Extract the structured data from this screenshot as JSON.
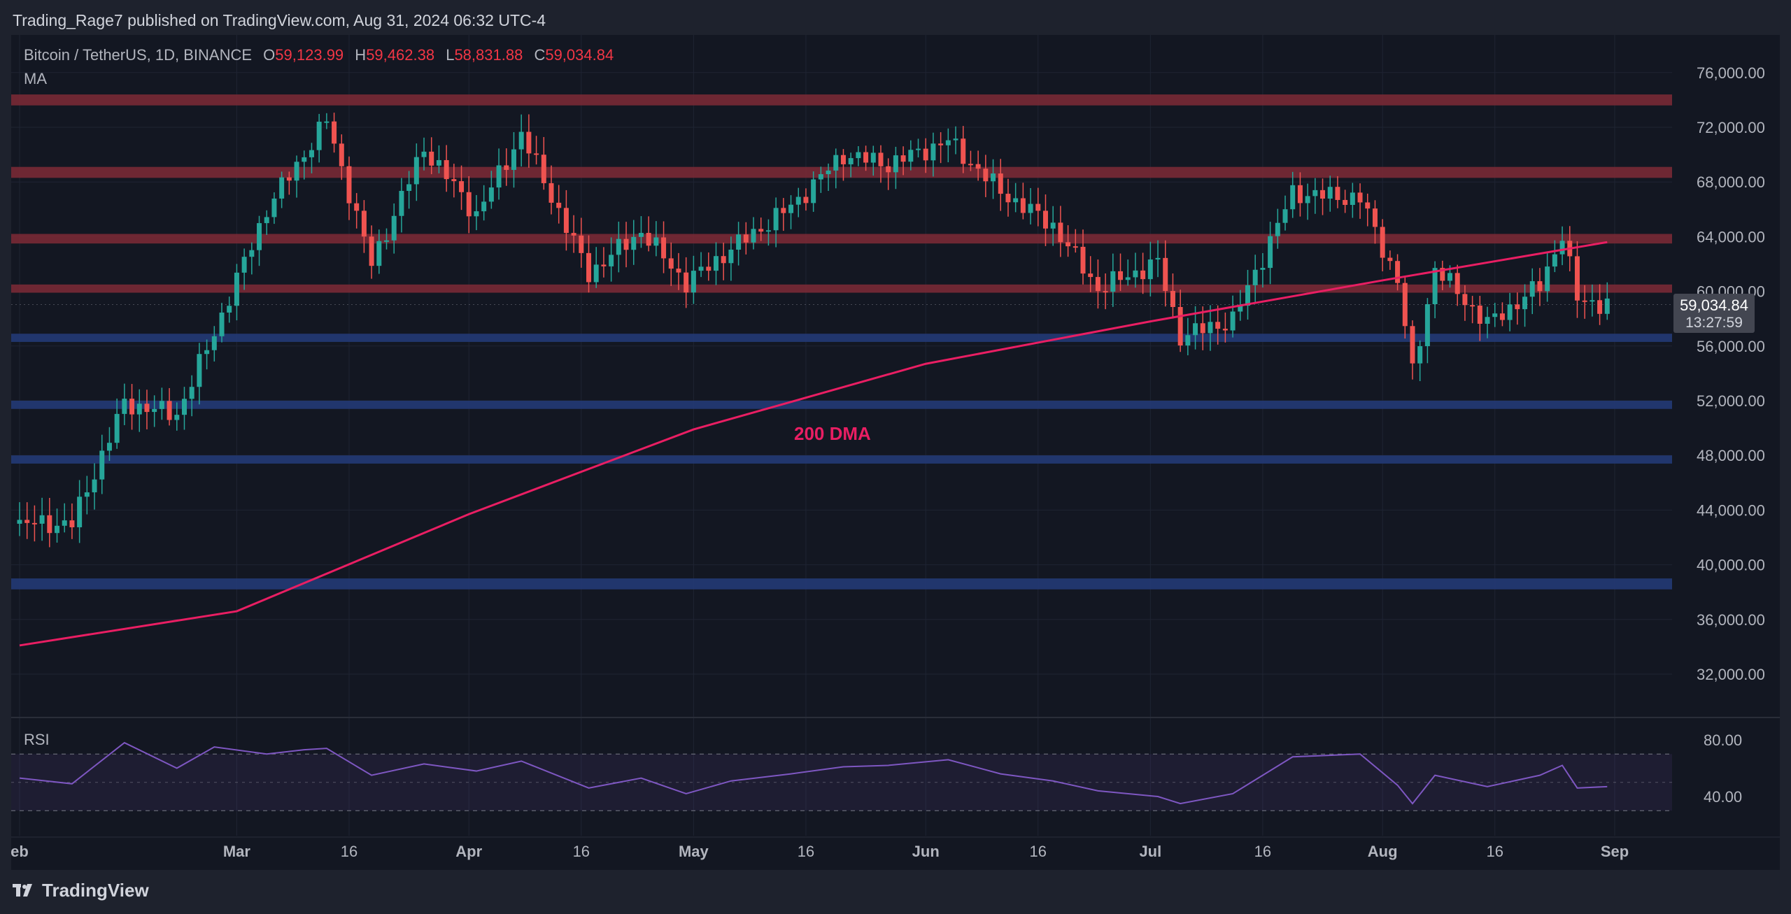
{
  "header": {
    "publish_line": "Trading_Rage7 published on TradingView.com, Aug 31, 2024 06:32 UTC-4"
  },
  "legend": {
    "symbol": "Bitcoin / TetherUS, 1D, BINANCE",
    "o_key": "O",
    "o_val": "59,123.99",
    "h_key": "H",
    "h_val": "59,462.38",
    "l_key": "L",
    "l_val": "58,831.88",
    "c_key": "C",
    "c_val": "59,034.84",
    "ma_label": "MA"
  },
  "annotation": {
    "dma_label": "200 DMA"
  },
  "price_tag": {
    "value": "59,034.84",
    "timer": "13:27:59"
  },
  "rsi_panel": {
    "label": "RSI"
  },
  "footer": {
    "brand": "TradingView"
  },
  "colors": {
    "up": "#26a69a",
    "down": "#ef5350",
    "ma": "#e91e63",
    "resistance": "#7f2a36",
    "support": "#243a75",
    "rsi": "#7e57c2"
  },
  "chart_data": [
    {
      "type": "candlestick",
      "title": "Bitcoin / TetherUS, 1D, BINANCE",
      "x_ticks": [
        "eb",
        "Mar",
        "16",
        "Apr",
        "16",
        "May",
        "16",
        "Jun",
        "16",
        "Jul",
        "16",
        "Aug",
        "16",
        "Sep"
      ],
      "x_tick_dates": [
        "2024-02-01",
        "2024-03-01",
        "2024-03-16",
        "2024-04-01",
        "2024-04-16",
        "2024-05-01",
        "2024-05-16",
        "2024-06-01",
        "2024-06-16",
        "2024-07-01",
        "2024-07-16",
        "2024-08-01",
        "2024-08-16",
        "2024-09-01"
      ],
      "y_ticks": [
        76000,
        72000,
        68000,
        64000,
        60000,
        56000,
        52000,
        48000,
        44000,
        40000,
        36000,
        32000
      ],
      "ylim": [
        29000,
        77500
      ],
      "series_close": {
        "dates": [
          "2024-02-01",
          "2024-02-08",
          "2024-02-15",
          "2024-02-22",
          "2024-02-27",
          "2024-03-05",
          "2024-03-13",
          "2024-03-19",
          "2024-03-26",
          "2024-04-02",
          "2024-04-08",
          "2024-04-17",
          "2024-04-24",
          "2024-04-30",
          "2024-05-06",
          "2024-05-14",
          "2024-05-21",
          "2024-05-27",
          "2024-06-04",
          "2024-06-11",
          "2024-06-18",
          "2024-06-24",
          "2024-07-02",
          "2024-07-05",
          "2024-07-12",
          "2024-07-20",
          "2024-07-29",
          "2024-08-03",
          "2024-08-05",
          "2024-08-08",
          "2024-08-15",
          "2024-08-22",
          "2024-08-25",
          "2024-08-27",
          "2024-08-31"
        ],
        "values": [
          43000,
          43000,
          51800,
          51000,
          57000,
          66000,
          72500,
          62000,
          70500,
          65600,
          71500,
          61300,
          64400,
          60600,
          63100,
          66200,
          70000,
          69300,
          71000,
          67300,
          64800,
          60200,
          62100,
          56700,
          57900,
          67200,
          66800,
          60800,
          54000,
          61700,
          57600,
          60400,
          64200,
          59400,
          59035
        ]
      },
      "ma_200": {
        "dates": [
          "2024-02-01",
          "2024-03-01",
          "2024-04-01",
          "2024-05-01",
          "2024-06-01",
          "2024-07-01",
          "2024-08-01",
          "2024-08-31"
        ],
        "values": [
          34100,
          36600,
          43700,
          49900,
          54700,
          57800,
          60800,
          63600
        ]
      },
      "resistance_zones": [
        [
          73600,
          74400
        ],
        [
          68300,
          69100
        ],
        [
          63500,
          64200
        ],
        [
          59900,
          60500
        ]
      ],
      "support_zones": [
        [
          56300,
          56900
        ],
        [
          51400,
          52000
        ],
        [
          47400,
          48000
        ],
        [
          38200,
          39000
        ]
      ],
      "last_price": 59034.84
    },
    {
      "type": "line",
      "title": "RSI",
      "y_ticks": [
        80,
        40
      ],
      "bands": [
        70,
        30
      ],
      "ylim": [
        25,
        85
      ],
      "series": [
        {
          "dates": [
            "2024-02-01",
            "2024-02-08",
            "2024-02-15",
            "2024-02-22",
            "2024-02-27",
            "2024-03-05",
            "2024-03-10",
            "2024-03-13",
            "2024-03-19",
            "2024-03-26",
            "2024-04-02",
            "2024-04-08",
            "2024-04-17",
            "2024-04-24",
            "2024-04-30",
            "2024-05-06",
            "2024-05-14",
            "2024-05-21",
            "2024-05-27",
            "2024-06-04",
            "2024-06-11",
            "2024-06-18",
            "2024-06-24",
            "2024-07-02",
            "2024-07-05",
            "2024-07-12",
            "2024-07-20",
            "2024-07-29",
            "2024-08-03",
            "2024-08-05",
            "2024-08-08",
            "2024-08-15",
            "2024-08-22",
            "2024-08-25",
            "2024-08-27",
            "2024-08-31"
          ],
          "values": [
            53,
            49,
            78,
            60,
            75,
            70,
            73,
            74,
            55,
            63,
            58,
            65,
            46,
            53,
            42,
            51,
            56,
            61,
            62,
            66,
            56,
            51,
            44,
            40,
            35,
            42,
            68,
            70,
            48,
            35,
            55,
            47,
            55,
            62,
            46,
            47
          ]
        }
      ]
    }
  ]
}
